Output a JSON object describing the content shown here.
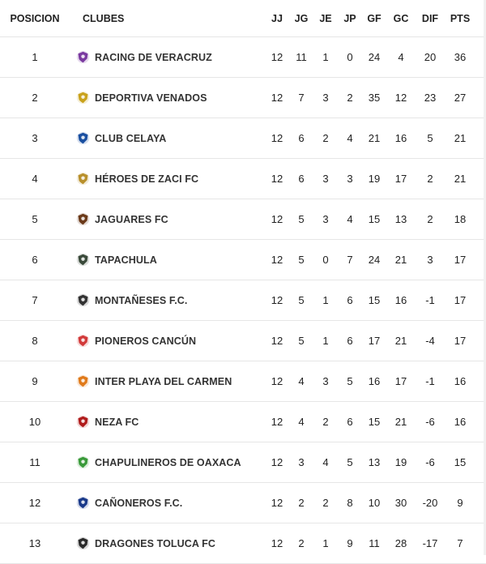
{
  "headers": {
    "pos": "POSICION",
    "club": "CLUBES",
    "jj": "JJ",
    "jg": "JG",
    "je": "JE",
    "jp": "JP",
    "gf": "GF",
    "gc": "GC",
    "dif": "DIF",
    "pts": "PTS"
  },
  "rows": [
    {
      "pos": "1",
      "club": "RACING DE VERACRUZ",
      "jj": "12",
      "jg": "11",
      "je": "1",
      "jp": "0",
      "gf": "24",
      "gc": "4",
      "dif": "20",
      "pts": "36",
      "logo": "racing-veracruz-crest",
      "color": "#7a3aa0"
    },
    {
      "pos": "2",
      "club": "DEPORTIVA VENADOS",
      "jj": "12",
      "jg": "7",
      "je": "3",
      "jp": "2",
      "gf": "35",
      "gc": "12",
      "dif": "23",
      "pts": "27",
      "logo": "venados-crest",
      "color": "#c9a21c"
    },
    {
      "pos": "3",
      "club": "CLUB CELAYA",
      "jj": "12",
      "jg": "6",
      "je": "2",
      "jp": "4",
      "gf": "21",
      "gc": "16",
      "dif": "5",
      "pts": "21",
      "logo": "celaya-crest",
      "color": "#1a4fa0"
    },
    {
      "pos": "4",
      "club": "HÉROES DE ZACI FC",
      "jj": "12",
      "jg": "6",
      "je": "3",
      "jp": "3",
      "gf": "19",
      "gc": "17",
      "dif": "2",
      "pts": "21",
      "logo": "heroes-zaci-crest",
      "color": "#b8902c"
    },
    {
      "pos": "5",
      "club": "JAGUARES FC",
      "jj": "12",
      "jg": "5",
      "je": "3",
      "jp": "4",
      "gf": "15",
      "gc": "13",
      "dif": "2",
      "pts": "18",
      "logo": "jaguares-crest",
      "color": "#6b3a1a"
    },
    {
      "pos": "6",
      "club": "TAPACHULA",
      "jj": "12",
      "jg": "5",
      "je": "0",
      "jp": "7",
      "gf": "24",
      "gc": "21",
      "dif": "3",
      "pts": "17",
      "logo": "tapachula-crest",
      "color": "#3a4a3a"
    },
    {
      "pos": "7",
      "club": "MONTAÑESES F.C.",
      "jj": "12",
      "jg": "5",
      "je": "1",
      "jp": "6",
      "gf": "15",
      "gc": "16",
      "dif": "-1",
      "pts": "17",
      "logo": "montaneses-crest",
      "color": "#333333"
    },
    {
      "pos": "8",
      "club": "PIONEROS CANCÚN",
      "jj": "12",
      "jg": "5",
      "je": "1",
      "jp": "6",
      "gf": "17",
      "gc": "21",
      "dif": "-4",
      "pts": "17",
      "logo": "pioneros-crest",
      "color": "#d23a3a"
    },
    {
      "pos": "9",
      "club": "INTER PLAYA DEL CARMEN",
      "jj": "12",
      "jg": "4",
      "je": "3",
      "jp": "5",
      "gf": "16",
      "gc": "17",
      "dif": "-1",
      "pts": "16",
      "logo": "inter-playa-crest",
      "color": "#e07a1a"
    },
    {
      "pos": "10",
      "club": "NEZA FC",
      "jj": "12",
      "jg": "4",
      "je": "2",
      "jp": "6",
      "gf": "15",
      "gc": "21",
      "dif": "-6",
      "pts": "16",
      "logo": "neza-crest",
      "color": "#b01c1c"
    },
    {
      "pos": "11",
      "club": "CHAPULINEROS DE OAXACA",
      "jj": "12",
      "jg": "3",
      "je": "4",
      "jp": "5",
      "gf": "13",
      "gc": "19",
      "dif": "-6",
      "pts": "15",
      "logo": "chapulineros-crest",
      "color": "#3a9a3a"
    },
    {
      "pos": "12",
      "club": "CAÑONEROS F.C.",
      "jj": "12",
      "jg": "2",
      "je": "2",
      "jp": "8",
      "gf": "10",
      "gc": "30",
      "dif": "-20",
      "pts": "9",
      "logo": "canoneros-crest",
      "color": "#1a3a8a"
    },
    {
      "pos": "13",
      "club": "DRAGONES TOLUCA FC",
      "jj": "12",
      "jg": "2",
      "je": "1",
      "jp": "9",
      "gf": "11",
      "gc": "28",
      "dif": "-17",
      "pts": "7",
      "logo": "dragones-toluca-crest",
      "color": "#2a2a2a"
    }
  ]
}
